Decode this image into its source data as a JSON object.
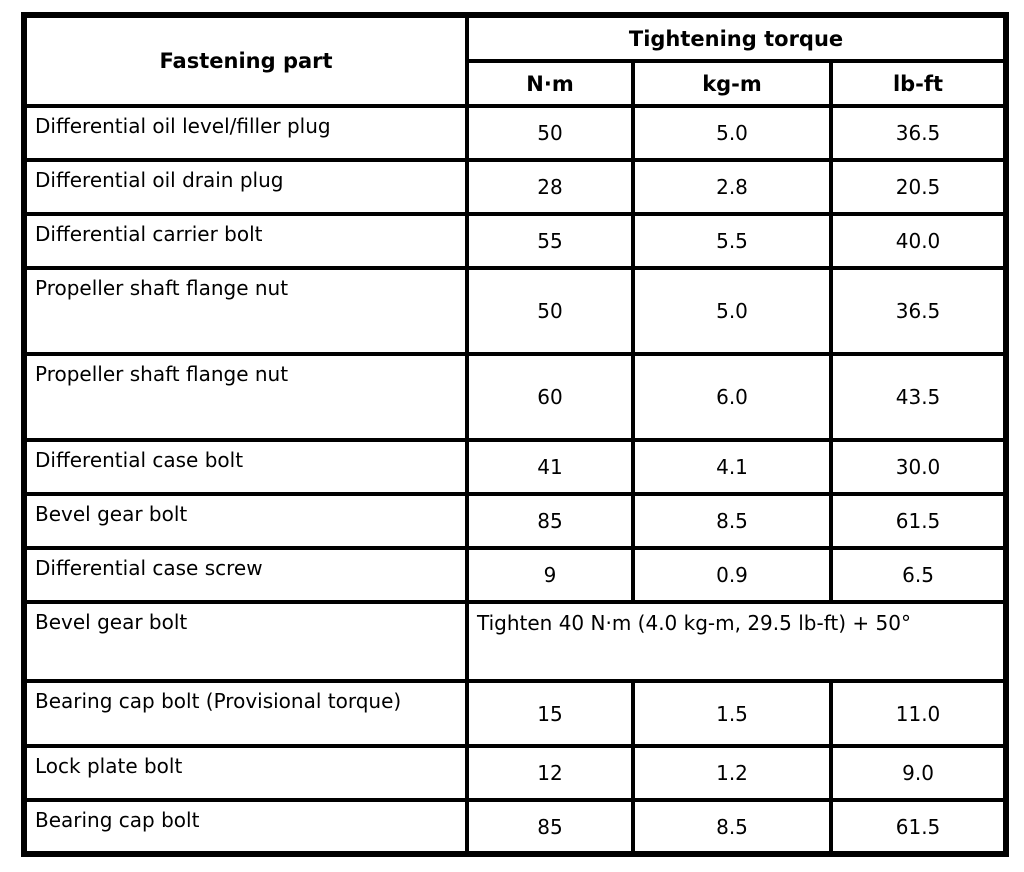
{
  "table": {
    "header": {
      "fastening_part": "Fastening part",
      "tightening_torque": "Tightening torque",
      "units": [
        "N·m",
        "kg-m",
        "lb-ft"
      ]
    },
    "rows": [
      {
        "part": "Differential oil level/filler plug",
        "nm": "50",
        "kgm": "5.0",
        "lbft": "36.5"
      },
      {
        "part": "Differential oil drain plug",
        "nm": "28",
        "kgm": "2.8",
        "lbft": "20.5"
      },
      {
        "part": "Differential carrier bolt",
        "nm": "55",
        "kgm": "5.5",
        "lbft": "40.0"
      },
      {
        "part": "Propeller shaft flange nut",
        "nm": "50",
        "kgm": "5.0",
        "lbft": "36.5"
      },
      {
        "part": "Propeller shaft flange nut",
        "nm": "60",
        "kgm": "6.0",
        "lbft": "43.5"
      },
      {
        "part": "Differential case bolt",
        "nm": "41",
        "kgm": "4.1",
        "lbft": "30.0"
      },
      {
        "part": "Bevel gear bolt",
        "nm": "85",
        "kgm": "8.5",
        "lbft": "61.5"
      },
      {
        "part": "Differential case screw",
        "nm": "9",
        "kgm": "0.9",
        "lbft": "6.5"
      },
      {
        "part": "Bevel gear bolt",
        "note": "Tighten 40 N·m (4.0 kg-m, 29.5 lb-ft) + 50°"
      },
      {
        "part": "Bearing cap bolt (Provisional torque)",
        "nm": "15",
        "kgm": "1.5",
        "lbft": "11.0"
      },
      {
        "part": "Lock plate bolt",
        "nm": "12",
        "kgm": "1.2",
        "lbft": "9.0"
      },
      {
        "part": "Bearing cap bolt",
        "nm": "85",
        "kgm": "8.5",
        "lbft": "61.5"
      }
    ]
  }
}
